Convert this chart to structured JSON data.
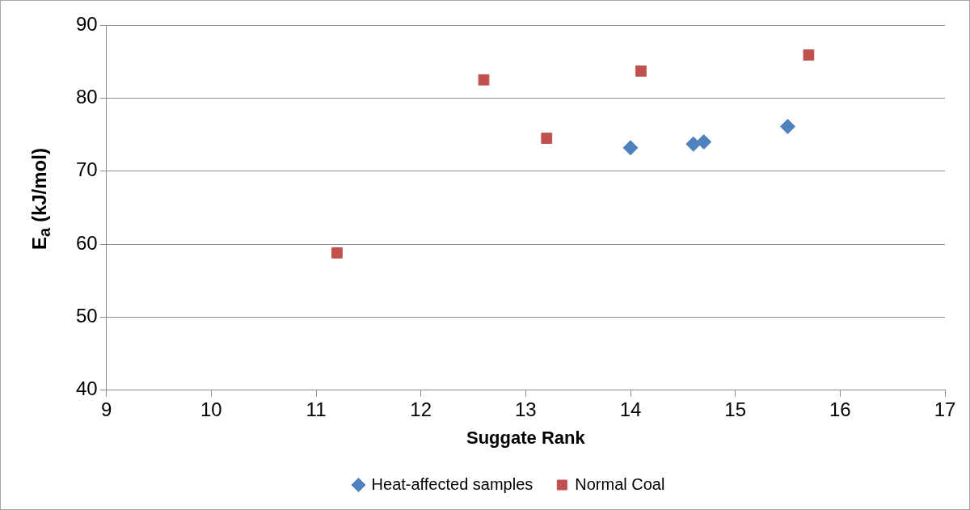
{
  "chart_data": {
    "type": "scatter",
    "xlabel": "Suggate Rank",
    "ylabel": "E$_{a}$ (kJ/mol)",
    "xlim": [
      9,
      17
    ],
    "xticks": [
      9,
      10,
      11,
      12,
      13,
      14,
      15,
      16,
      17
    ],
    "ylim": [
      40,
      90
    ],
    "yticks": [
      40,
      50,
      60,
      70,
      80,
      90
    ],
    "grid": "y",
    "legend": "bottom",
    "series": [
      {
        "name": "Heat-affected samples",
        "color": "#4f81bd",
        "marker": "diamond",
        "x": [
          14.0,
          14.6,
          14.7,
          15.5
        ],
        "values": [
          73.2,
          73.7,
          74.0,
          76.1
        ]
      },
      {
        "name": "Normal Coal",
        "color": "#c0504d",
        "marker": "square",
        "x": [
          11.2,
          12.6,
          13.2,
          14.1,
          15.7
        ],
        "values": [
          58.8,
          82.5,
          74.5,
          83.7,
          85.9
        ]
      }
    ]
  }
}
